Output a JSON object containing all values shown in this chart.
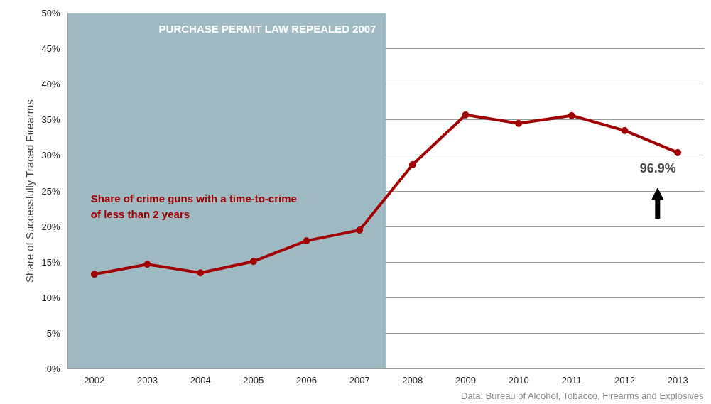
{
  "chart_data": {
    "type": "line",
    "ylabel": "Share of Successfully Traced Firearms",
    "x": [
      2002,
      2003,
      2004,
      2005,
      2006,
      2007,
      2008,
      2009,
      2010,
      2011,
      2012,
      2013
    ],
    "series": [
      {
        "name": "Share of crime guns with a time-to-crime\nof less than 2 years",
        "color": "#a00000",
        "values": [
          13.3,
          14.7,
          13.5,
          15.1,
          18.0,
          19.5,
          28.7,
          35.7,
          34.5,
          35.6,
          33.5,
          30.4
        ]
      }
    ],
    "xlim": [
      2001.5,
      2013.5
    ],
    "xticks": [
      2002,
      2003,
      2004,
      2005,
      2006,
      2007,
      2008,
      2009,
      2010,
      2011,
      2012,
      2013
    ],
    "ylim": [
      0,
      50
    ],
    "yticks": [
      {
        "value": 0,
        "label": "0%"
      },
      {
        "value": 5,
        "label": "5%"
      },
      {
        "value": 10,
        "label": "10%"
      },
      {
        "value": 15,
        "label": "15%"
      },
      {
        "value": 20,
        "label": "20%"
      },
      {
        "value": 25,
        "label": "25%"
      },
      {
        "value": 30,
        "label": "30%"
      },
      {
        "value": 35,
        "label": "35%"
      },
      {
        "value": 40,
        "label": "40%"
      },
      {
        "value": 45,
        "label": "45%"
      },
      {
        "value": 50,
        "label": "50%"
      }
    ],
    "bands": [
      {
        "axis": "x",
        "from": 2001.5,
        "to": 2007.5,
        "label": "PURCHASE PERMIT LAW REPEALED 2007",
        "color": "#a0bac4"
      }
    ],
    "annotations": [
      {
        "text": "96.9%",
        "x": 2013,
        "y": 30.4
      },
      "Data: Bureau of Alcohol, Tobacco, Firearms and Explosives"
    ],
    "grid": "y",
    "marker": "circle",
    "line_style": "solid"
  }
}
